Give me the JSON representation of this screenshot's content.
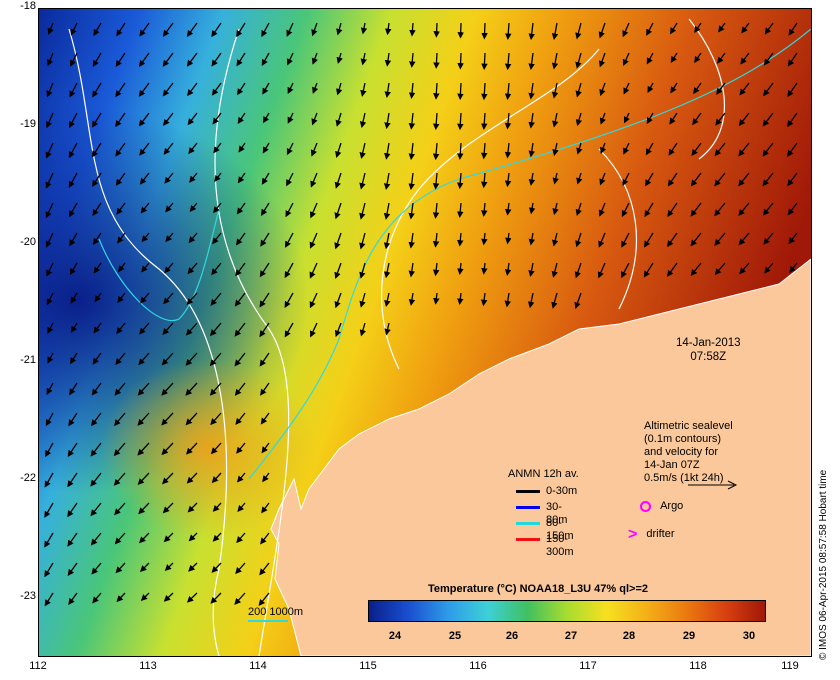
{
  "map": {
    "y_ticks": [
      "-18",
      "-19",
      "-20",
      "-21",
      "-22",
      "-23"
    ],
    "x_ticks": [
      "112",
      "113",
      "114",
      "115",
      "116",
      "117",
      "118",
      "119"
    ],
    "date_line1": "14-Jan-2013",
    "date_line2": "07:58Z",
    "altimetry_lines": [
      "Altimetric sealevel",
      "(0.1m contours)",
      "and velocity for",
      "14-Jan 07Z",
      "0.5m/s (1kt 24h)"
    ],
    "legend_title": "ANMN 12h av.",
    "legend_items": [
      {
        "label": "0-30m",
        "color": "#000000"
      },
      {
        "label": "30-80m",
        "color": "#0000ee"
      },
      {
        "label": "80-150m",
        "color": "#22d8d8"
      },
      {
        "label": "150-300m",
        "color": "#ee1111"
      }
    ],
    "argo_label": "Argo",
    "argo_color": "#ff00ff",
    "drifter_label": "drifter",
    "drifter_color": "#ff00ff",
    "bathy_label": "200  1000m",
    "colorbar_title": "Temperature (°C) NOAA18_L3U 47% ql>=2",
    "colorbar_ticks": [
      "24",
      "25",
      "26",
      "27",
      "28",
      "29",
      "30"
    ],
    "credit": "© IMOS 06-Apr-2015 08:57:58 Hobart time",
    "land_color": "#fac89a"
  }
}
